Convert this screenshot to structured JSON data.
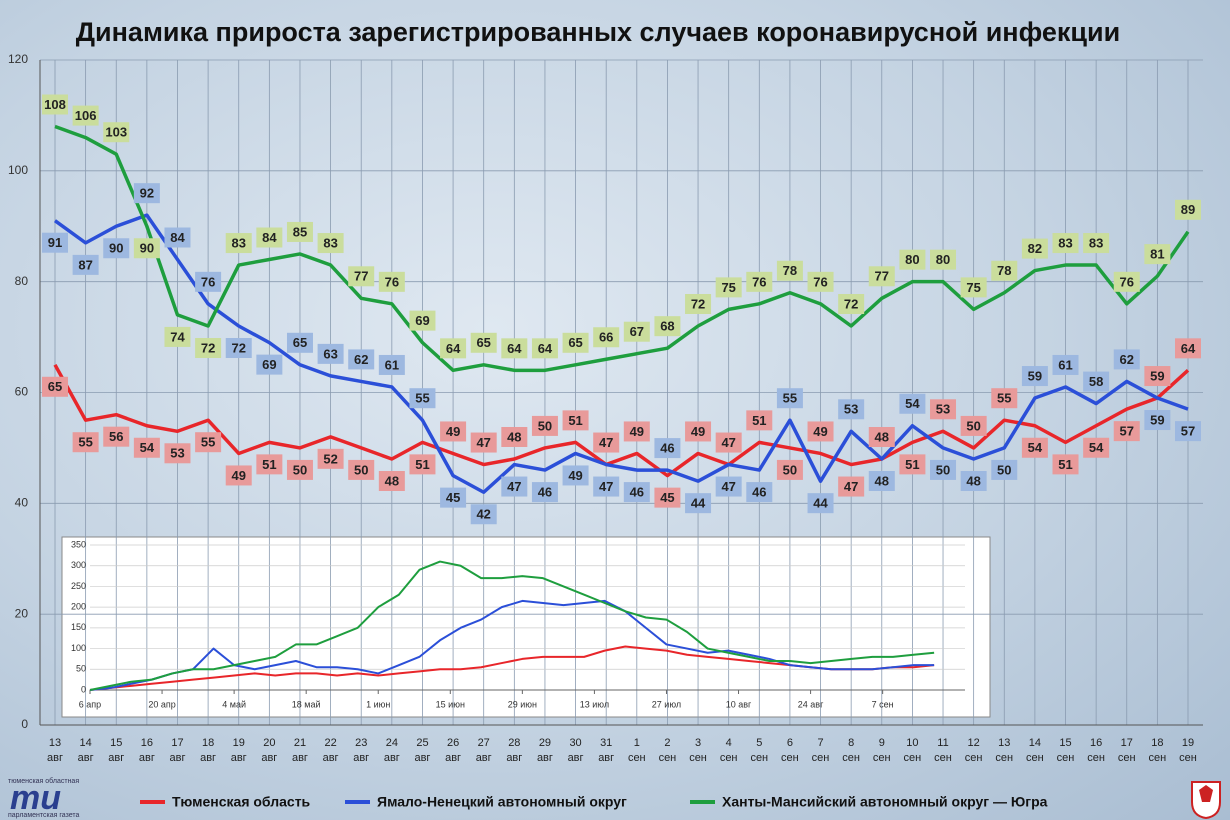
{
  "title": "Динамика прироста зарегистрированных случаев коронавирусной инфекции",
  "logo": {
    "top": "тюменская областная",
    "mark": "mu",
    "bottom": "парламентская газета"
  },
  "chart_data": [
    {
      "type": "line",
      "categories": [
        "13\nавг",
        "14\nавг",
        "15\nавг",
        "16\nавг",
        "17\nавг",
        "18\nавг",
        "19\nавг",
        "20\nавг",
        "21\nавг",
        "22\nавг",
        "23\nавг",
        "24\nавг",
        "25\nавг",
        "26\nавг",
        "27\nавг",
        "28\nавг",
        "29\nавг",
        "30\nавг",
        "31\nавг",
        "1\nсен",
        "2\nсен",
        "3\nсен",
        "4\nсен",
        "5\nсен",
        "6\nсен",
        "7\nсен",
        "8\nсен",
        "9\nсен",
        "10\nсен",
        "11\nсен",
        "12\nсен",
        "13\nсен",
        "14\nсен",
        "15\nсен",
        "16\nсен",
        "17\nсен",
        "18\nсен",
        "19\nсен"
      ],
      "series": [
        {
          "name": "Тюменская область",
          "color": "#e8262a",
          "label_color": "#e89a9a",
          "values": [
            65,
            55,
            56,
            54,
            53,
            55,
            49,
            51,
            50,
            52,
            50,
            48,
            51,
            49,
            47,
            48,
            50,
            51,
            47,
            49,
            45,
            49,
            47,
            51,
            50,
            49,
            47,
            48,
            51,
            53,
            50,
            55,
            54,
            51,
            54,
            57,
            59,
            64
          ]
        },
        {
          "name": "Ямало-Ненецкий автономный округ",
          "color": "#2b4fd8",
          "label_color": "#9db8e0",
          "values": [
            91,
            87,
            90,
            92,
            84,
            76,
            72,
            69,
            65,
            63,
            62,
            61,
            55,
            45,
            42,
            47,
            46,
            49,
            47,
            46,
            46,
            44,
            47,
            46,
            55,
            44,
            53,
            48,
            54,
            50,
            48,
            50,
            59,
            61,
            58,
            62,
            59,
            57
          ]
        },
        {
          "name": "Ханты-Мансийский автономный округ — Югра",
          "color": "#1e9e3e",
          "label_color": "#cadd9c",
          "values": [
            108,
            106,
            103,
            90,
            74,
            72,
            83,
            84,
            85,
            83,
            77,
            76,
            69,
            64,
            65,
            64,
            64,
            65,
            66,
            67,
            68,
            72,
            75,
            76,
            78,
            76,
            72,
            77,
            80,
            80,
            75,
            78,
            82,
            83,
            83,
            76,
            81,
            89
          ]
        }
      ],
      "ylim": [
        0,
        120
      ],
      "yticks": [
        0,
        20,
        40,
        60,
        80,
        100,
        120
      ],
      "grid": true,
      "legend": "bottom"
    },
    {
      "type": "line",
      "x": [
        0,
        4,
        8,
        12,
        16,
        20,
        24,
        28,
        32,
        36,
        40,
        44,
        48,
        52,
        56,
        60,
        64,
        68,
        72,
        76,
        80,
        84,
        88,
        92,
        96,
        100,
        104,
        108,
        112,
        116,
        120,
        124,
        128,
        132,
        136,
        140,
        144,
        148,
        152,
        156,
        160,
        164
      ],
      "series": [
        {
          "name": "Тюменская область",
          "color": "#e8262a",
          "values": [
            0,
            5,
            10,
            15,
            20,
            25,
            30,
            35,
            40,
            35,
            40,
            40,
            35,
            40,
            35,
            40,
            45,
            50,
            50,
            55,
            65,
            75,
            80,
            80,
            80,
            95,
            105,
            100,
            95,
            85,
            80,
            75,
            70,
            65,
            60,
            55,
            50,
            50,
            50,
            55,
            55,
            60
          ]
        },
        {
          "name": "Ямало-Ненецкий автономный округ",
          "color": "#2b4fd8",
          "values": [
            0,
            5,
            15,
            25,
            40,
            50,
            100,
            60,
            50,
            60,
            70,
            55,
            55,
            50,
            40,
            60,
            80,
            120,
            150,
            170,
            200,
            215,
            210,
            205,
            210,
            215,
            190,
            150,
            110,
            100,
            90,
            95,
            85,
            75,
            60,
            55,
            50,
            50,
            50,
            55,
            60,
            60
          ]
        },
        {
          "name": "Ханты-Мансийский автономный округ — Югра",
          "color": "#1e9e3e",
          "values": [
            0,
            10,
            20,
            25,
            40,
            50,
            50,
            60,
            70,
            80,
            110,
            110,
            130,
            150,
            200,
            230,
            290,
            310,
            300,
            270,
            270,
            275,
            270,
            250,
            230,
            210,
            190,
            175,
            170,
            140,
            100,
            90,
            80,
            70,
            70,
            65,
            70,
            75,
            80,
            80,
            85,
            90
          ]
        }
      ],
      "xlim": [
        0,
        170
      ],
      "xticks": [
        {
          "value": 0,
          "label": "6 апр"
        },
        {
          "value": 14,
          "label": "20 апр"
        },
        {
          "value": 28,
          "label": "4 май"
        },
        {
          "value": 42,
          "label": "18 май"
        },
        {
          "value": 56,
          "label": "1 июн"
        },
        {
          "value": 70,
          "label": "15 июн"
        },
        {
          "value": 84,
          "label": "29 июн"
        },
        {
          "value": 98,
          "label": "13 июл"
        },
        {
          "value": 112,
          "label": "27 июл"
        },
        {
          "value": 126,
          "label": "10 авг"
        },
        {
          "value": 140,
          "label": "24 авг"
        },
        {
          "value": 154,
          "label": "7 сен"
        }
      ],
      "ylim": [
        0,
        350
      ],
      "yticks": [
        0,
        50,
        100,
        150,
        200,
        250,
        300,
        350
      ],
      "grid": true
    }
  ]
}
